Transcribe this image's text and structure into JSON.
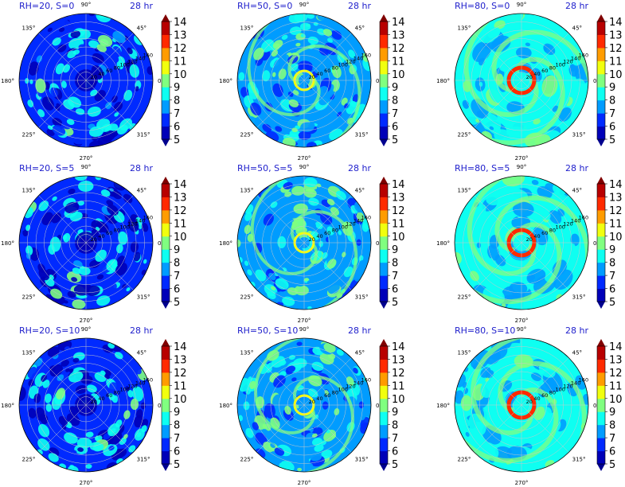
{
  "figure": {
    "background": "#ffffff",
    "title_color": "#1f1fcc"
  },
  "chart_data": {
    "type": "polar-contour",
    "colormap": "jet",
    "colorbar": {
      "min": 5,
      "max": 14,
      "ticks": [
        5,
        6,
        7,
        8,
        9,
        10,
        11,
        12,
        13,
        14
      ],
      "extend": "both"
    },
    "angle_ticks": [
      "0°",
      "45°",
      "90°",
      "135°",
      "180°",
      "225°",
      "270°",
      "315°"
    ],
    "radial_ticks": [
      "20",
      "40",
      "60",
      "80",
      "100",
      "120",
      "140",
      "160"
    ],
    "grid": true,
    "panels": [
      {
        "title": "RH=20, S=0",
        "time": "28 hr",
        "rh": 20,
        "shear": 0
      },
      {
        "title": "RH=50, S=0",
        "time": "28 hr",
        "rh": 50,
        "shear": 0
      },
      {
        "title": "RH=80, S=0",
        "time": "28 hr",
        "rh": 80,
        "shear": 0
      },
      {
        "title": "RH=20, S=5",
        "time": "28 hr",
        "rh": 20,
        "shear": 5
      },
      {
        "title": "RH=50, S=5",
        "time": "28 hr",
        "rh": 50,
        "shear": 5
      },
      {
        "title": "RH=80, S=5",
        "time": "28 hr",
        "rh": 80,
        "shear": 5
      },
      {
        "title": "RH=20, S=10",
        "time": "28 hr",
        "rh": 20,
        "shear": 10
      },
      {
        "title": "RH=50, S=10",
        "time": "28 hr",
        "rh": 50,
        "shear": 10
      },
      {
        "title": "RH=80, S=10",
        "time": "28 hr",
        "rh": 80,
        "shear": 10
      }
    ]
  }
}
